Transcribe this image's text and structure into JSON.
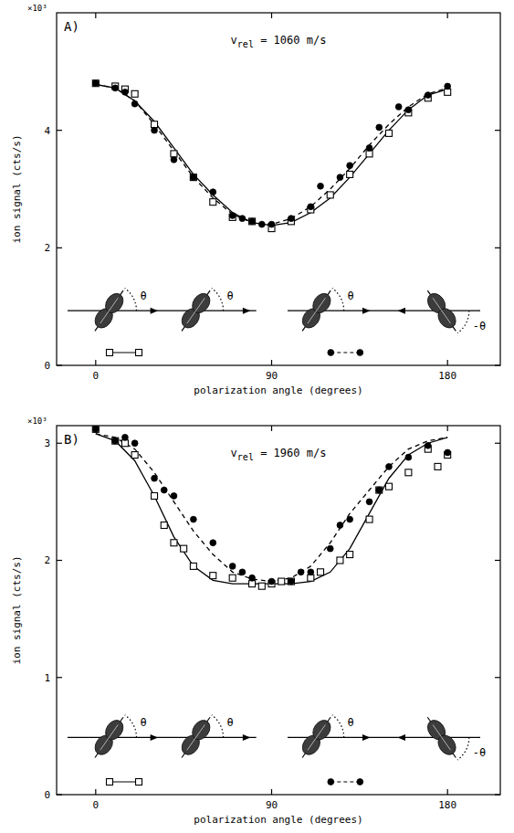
{
  "chart_data": [
    {
      "type": "scatter",
      "label": "A)",
      "y_multiplier": "×10³",
      "annotation": [
        {
          "text": "v"
        },
        {
          "text": "rel",
          "sub": true
        },
        {
          "text": " = 1060 m/s"
        }
      ],
      "x_label": "polarization angle (degrees)",
      "y_label": "ion signal (cts/s)",
      "xlim": [
        -20,
        207
      ],
      "xticks": [
        0,
        90,
        180
      ],
      "ylim": [
        0,
        6
      ],
      "yticks": [
        0,
        2,
        4
      ],
      "grid": false,
      "legend": "bottom",
      "insets": [
        [
          "θ",
          "θ"
        ],
        [
          "θ",
          "-θ"
        ]
      ],
      "series": [
        {
          "type": "scatter",
          "marker": "square-open",
          "line_style": "solid",
          "color": "#000000",
          "x": [
            0,
            10,
            15,
            20,
            30,
            40,
            50,
            60,
            70,
            80,
            90,
            100,
            110,
            120,
            130,
            140,
            150,
            160,
            170,
            180
          ],
          "values": [
            4.8,
            4.75,
            4.7,
            4.62,
            4.1,
            3.6,
            3.2,
            2.78,
            2.52,
            2.45,
            2.33,
            2.45,
            2.65,
            2.9,
            3.25,
            3.6,
            3.95,
            4.3,
            4.55,
            4.65
          ]
        },
        {
          "type": "scatter",
          "marker": "circle-filled",
          "line_style": "dashed",
          "color": "#000000",
          "x": [
            0,
            10,
            15,
            20,
            30,
            40,
            50,
            60,
            70,
            75,
            80,
            85,
            90,
            100,
            110,
            115,
            125,
            130,
            140,
            145,
            155,
            160,
            170,
            180
          ],
          "values": [
            4.8,
            4.72,
            4.65,
            4.45,
            4.0,
            3.5,
            3.2,
            2.95,
            2.55,
            2.5,
            2.45,
            2.4,
            2.4,
            2.5,
            2.7,
            3.05,
            3.2,
            3.4,
            3.7,
            4.05,
            4.4,
            4.35,
            4.6,
            4.75
          ]
        },
        {
          "type": "line",
          "line_style": "solid",
          "color": "#000000",
          "x": [
            0,
            10,
            20,
            30,
            40,
            50,
            60,
            70,
            80,
            90,
            100,
            110,
            120,
            130,
            140,
            150,
            160,
            170,
            180
          ],
          "values": [
            4.78,
            4.72,
            4.5,
            4.15,
            3.7,
            3.25,
            2.9,
            2.6,
            2.43,
            2.38,
            2.43,
            2.6,
            2.85,
            3.2,
            3.6,
            4.0,
            4.35,
            4.6,
            4.7
          ]
        },
        {
          "type": "line",
          "line_style": "dashed",
          "color": "#000000",
          "x": [
            0,
            10,
            20,
            30,
            40,
            50,
            60,
            70,
            80,
            90,
            100,
            110,
            120,
            130,
            140,
            150,
            160,
            170,
            180
          ],
          "values": [
            4.78,
            4.72,
            4.5,
            4.1,
            3.65,
            3.2,
            2.85,
            2.57,
            2.43,
            2.4,
            2.5,
            2.7,
            3.0,
            3.35,
            3.75,
            4.1,
            4.4,
            4.62,
            4.72
          ]
        }
      ]
    },
    {
      "type": "scatter",
      "label": "B)",
      "y_multiplier": "×10³",
      "annotation": [
        {
          "text": "v"
        },
        {
          "text": "rel",
          "sub": true
        },
        {
          "text": " = 1960 m/s"
        }
      ],
      "x_label": "polarization angle (degrees)",
      "y_label": "ion signal (cts/s)",
      "xlim": [
        -20,
        207
      ],
      "xticks": [
        0,
        90,
        180
      ],
      "ylim": [
        0,
        3.15
      ],
      "yticks": [
        0,
        1,
        2,
        3
      ],
      "grid": false,
      "legend": "bottom",
      "insets": [
        [
          "θ",
          "θ"
        ],
        [
          "θ",
          "-θ"
        ]
      ],
      "series": [
        {
          "type": "scatter",
          "marker": "square-open",
          "line_style": "solid",
          "color": "#000000",
          "x": [
            0,
            10,
            15,
            20,
            30,
            35,
            40,
            45,
            50,
            60,
            70,
            80,
            85,
            90,
            95,
            100,
            110,
            115,
            125,
            130,
            140,
            145,
            150,
            160,
            170,
            175,
            180
          ],
          "values": [
            3.12,
            3.02,
            3.0,
            2.9,
            2.55,
            2.3,
            2.15,
            2.1,
            1.95,
            1.87,
            1.85,
            1.8,
            1.78,
            1.8,
            1.82,
            1.82,
            1.85,
            1.9,
            2.0,
            2.05,
            2.35,
            2.6,
            2.63,
            2.75,
            2.95,
            2.8,
            2.9
          ]
        },
        {
          "type": "scatter",
          "marker": "circle-filled",
          "line_style": "dashed",
          "color": "#000000",
          "x": [
            0,
            10,
            15,
            20,
            30,
            35,
            40,
            50,
            60,
            70,
            75,
            80,
            90,
            100,
            105,
            110,
            120,
            125,
            130,
            140,
            145,
            150,
            160,
            170,
            180
          ],
          "values": [
            3.12,
            3.02,
            3.05,
            3.0,
            2.7,
            2.6,
            2.55,
            2.35,
            2.15,
            1.95,
            1.9,
            1.85,
            1.82,
            1.82,
            1.9,
            1.9,
            2.1,
            2.3,
            2.35,
            2.5,
            2.6,
            2.8,
            2.88,
            2.98,
            2.92
          ]
        },
        {
          "type": "line",
          "line_style": "solid",
          "color": "#000000",
          "x": [
            0,
            10,
            20,
            30,
            40,
            50,
            60,
            70,
            80,
            90,
            100,
            110,
            120,
            130,
            140,
            150,
            160,
            170,
            180
          ],
          "values": [
            3.08,
            3.02,
            2.85,
            2.55,
            2.2,
            1.95,
            1.83,
            1.8,
            1.8,
            1.8,
            1.8,
            1.82,
            1.9,
            2.1,
            2.4,
            2.7,
            2.9,
            3.0,
            3.05
          ]
        },
        {
          "type": "line",
          "line_style": "dashed",
          "color": "#000000",
          "x": [
            0,
            10,
            20,
            30,
            40,
            50,
            60,
            70,
            80,
            90,
            100,
            110,
            120,
            130,
            140,
            150,
            160,
            170,
            180
          ],
          "values": [
            3.08,
            3.05,
            2.95,
            2.75,
            2.5,
            2.25,
            2.05,
            1.9,
            1.84,
            1.82,
            1.85,
            1.95,
            2.15,
            2.4,
            2.6,
            2.8,
            2.95,
            3.02,
            3.05
          ]
        }
      ]
    }
  ]
}
